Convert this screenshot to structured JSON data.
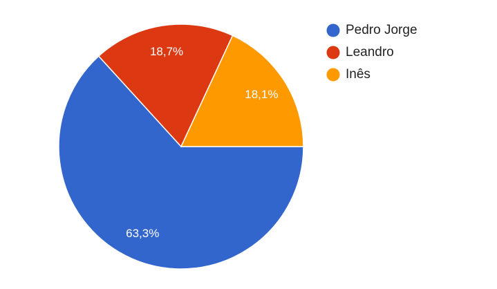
{
  "chart_data": {
    "type": "pie",
    "categories": [
      "Pedro Jorge",
      "Leandro",
      "Inês"
    ],
    "values": [
      63.3,
      18.7,
      18.1
    ],
    "value_labels": [
      "63,3%",
      "18,7%",
      "18,1%"
    ],
    "colors": [
      "#3366cc",
      "#dc3912",
      "#ff9900"
    ],
    "legend": "right"
  }
}
